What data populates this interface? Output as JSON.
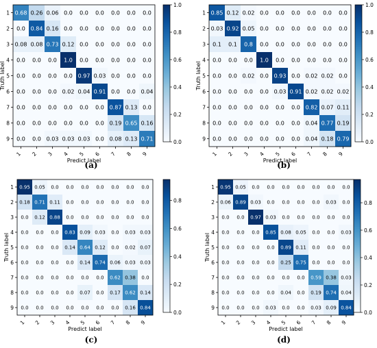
{
  "chart_data": [
    {
      "type": "heatmap",
      "caption": "(a)",
      "xlabel": "Predict label",
      "ylabel": "Truth label",
      "labels": [
        "1",
        "2",
        "3",
        "4",
        "5",
        "6",
        "7",
        "8",
        "9"
      ],
      "colorbar_ticks": [
        "0.0",
        "0.2",
        "0.4",
        "0.6",
        "0.8",
        "1.0"
      ],
      "colorbar_range": [
        0,
        1.0
      ],
      "cells": [
        [
          "0.68",
          "0.26",
          "0.06",
          "0.0",
          "0.0",
          "0.0",
          "0.0",
          "0.0",
          "0.0"
        ],
        [
          "0.0",
          "0.84",
          "0.16",
          "0.0",
          "0.0",
          "0.0",
          "0.0",
          "0.0",
          "0.0"
        ],
        [
          "0.08",
          "0.08",
          "0.73",
          "0.12",
          "0.0",
          "0.0",
          "0.0",
          "0.0",
          "0.0"
        ],
        [
          "0.0",
          "0.0",
          "0.0",
          "1.0",
          "0.0",
          "0.0",
          "0.0",
          "0.0",
          "0.0"
        ],
        [
          "0.0",
          "0.0",
          "0.0",
          "0.0",
          "0.97",
          "0.03",
          "0.0",
          "0.0",
          "0.0"
        ],
        [
          "0.0",
          "0.0",
          "0.0",
          "0.02",
          "0.04",
          "0.91",
          "0.0",
          "0.0",
          "0.04"
        ],
        [
          "0.0",
          "0.0",
          "0.0",
          "0.0",
          "0.0",
          "0.0",
          "0.87",
          "0.13",
          "0.0"
        ],
        [
          "0.0",
          "0.0",
          "0.0",
          "0.0",
          "0.0",
          "0.0",
          "0.19",
          "0.65",
          "0.16"
        ],
        [
          "0.0",
          "0.0",
          "0.03",
          "0.03",
          "0.03",
          "0.0",
          "0.08",
          "0.13",
          "0.71"
        ]
      ]
    },
    {
      "type": "heatmap",
      "caption": "(b)",
      "xlabel": "Predict label",
      "ylabel": "Truth label",
      "labels": [
        "1",
        "2",
        "3",
        "4",
        "5",
        "6",
        "7",
        "8",
        "9"
      ],
      "colorbar_ticks": [
        "0.0",
        "0.2",
        "0.4",
        "0.6",
        "0.8",
        "1.0"
      ],
      "colorbar_range": [
        0,
        1.0
      ],
      "cells": [
        [
          "0.85",
          "0.12",
          "0.02",
          "0.0",
          "0.0",
          "0.0",
          "0.0",
          "0.0",
          "0.0"
        ],
        [
          "0.03",
          "0.92",
          "0.05",
          "0.0",
          "0.0",
          "0.0",
          "0.0",
          "0.0",
          "0.0"
        ],
        [
          "0.1",
          "0.1",
          "0.8",
          "0.0",
          "0.0",
          "0.0",
          "0.0",
          "0.0",
          "0.0"
        ],
        [
          "0.0",
          "0.0",
          "0.0",
          "1.0",
          "0.0",
          "0.0",
          "0.0",
          "0.0",
          "0.0"
        ],
        [
          "0.0",
          "0.0",
          "0.02",
          "0.0",
          "0.93",
          "0.0",
          "0.02",
          "0.02",
          "0.0"
        ],
        [
          "0.0",
          "0.0",
          "0.0",
          "0.0",
          "0.03",
          "0.91",
          "0.02",
          "0.02",
          "0.02"
        ],
        [
          "0.0",
          "0.0",
          "0.0",
          "0.0",
          "0.0",
          "0.0",
          "0.82",
          "0.07",
          "0.11"
        ],
        [
          "0.0",
          "0.0",
          "0.0",
          "0.0",
          "0.0",
          "0.0",
          "0.04",
          "0.77",
          "0.19"
        ],
        [
          "0.0",
          "0.0",
          "0.0",
          "0.0",
          "0.0",
          "0.0",
          "0.04",
          "0.18",
          "0.79"
        ]
      ]
    },
    {
      "type": "heatmap",
      "caption": "(c)",
      "xlabel": "Predict label",
      "ylabel": "Truth label",
      "labels": [
        "1",
        "2",
        "3",
        "4",
        "5",
        "6",
        "7",
        "8",
        "9"
      ],
      "colorbar_ticks": [
        "0.0",
        "0.2",
        "0.4",
        "0.6",
        "0.8"
      ],
      "colorbar_range": [
        0,
        0.95
      ],
      "cells": [
        [
          "0.95",
          "0.05",
          "0.0",
          "0.0",
          "0.0",
          "0.0",
          "0.0",
          "0.0",
          "0.0"
        ],
        [
          "0.18",
          "0.71",
          "0.11",
          "0.0",
          "0.0",
          "0.0",
          "0.0",
          "0.0",
          "0.0"
        ],
        [
          "0.0",
          "0.12",
          "0.88",
          "0.0",
          "0.0",
          "0.0",
          "0.0",
          "0.0",
          "0.0"
        ],
        [
          "0.0",
          "0.0",
          "0.0",
          "0.83",
          "0.09",
          "0.03",
          "0.0",
          "0.03",
          "0.03"
        ],
        [
          "0.0",
          "0.0",
          "0.0",
          "0.14",
          "0.64",
          "0.12",
          "0.0",
          "0.02",
          "0.07"
        ],
        [
          "0.0",
          "0.0",
          "0.0",
          "0.0",
          "0.14",
          "0.74",
          "0.06",
          "0.03",
          "0.03"
        ],
        [
          "0.0",
          "0.0",
          "0.0",
          "0.0",
          "0.0",
          "0.0",
          "0.62",
          "0.38",
          "0.0"
        ],
        [
          "0.0",
          "0.0",
          "0.0",
          "0.0",
          "0.07",
          "0.0",
          "0.17",
          "0.62",
          "0.14"
        ],
        [
          "0.0",
          "0.0",
          "0.0",
          "0.0",
          "0.0",
          "0.0",
          "0.0",
          "0.16",
          "0.84"
        ]
      ]
    },
    {
      "type": "heatmap",
      "caption": "(d)",
      "xlabel": "Predict label",
      "ylabel": "Truth label",
      "labels": [
        "1",
        "2",
        "3",
        "4",
        "5",
        "6",
        "7",
        "8",
        "9"
      ],
      "colorbar_ticks": [
        "0.0",
        "0.2",
        "0.4",
        "0.6",
        "0.8"
      ],
      "colorbar_range": [
        0,
        0.97
      ],
      "cells": [
        [
          "0.95",
          "0.05",
          "0.0",
          "0.0",
          "0.0",
          "0.0",
          "0.0",
          "0.0",
          "0.0"
        ],
        [
          "0.06",
          "0.89",
          "0.03",
          "0.0",
          "0.0",
          "0.0",
          "0.0",
          "0.03",
          "0.0"
        ],
        [
          "0.0",
          "0.0",
          "0.97",
          "0.03",
          "0.0",
          "0.0",
          "0.0",
          "0.0",
          "0.0"
        ],
        [
          "0.0",
          "0.0",
          "0.0",
          "0.85",
          "0.08",
          "0.05",
          "0.0",
          "0.0",
          "0.03"
        ],
        [
          "0.0",
          "0.0",
          "0.0",
          "0.0",
          "0.89",
          "0.11",
          "0.0",
          "0.0",
          "0.0"
        ],
        [
          "0.0",
          "0.0",
          "0.0",
          "0.0",
          "0.25",
          "0.75",
          "0.0",
          "0.0",
          "0.0"
        ],
        [
          "0.0",
          "0.0",
          "0.0",
          "0.0",
          "0.0",
          "0.0",
          "0.59",
          "0.38",
          "0.03"
        ],
        [
          "0.0",
          "0.0",
          "0.0",
          "0.0",
          "0.04",
          "0.0",
          "0.19",
          "0.74",
          "0.04"
        ],
        [
          "0.0",
          "0.0",
          "0.0",
          "0.03",
          "0.0",
          "0.0",
          "0.03",
          "0.09",
          "0.84"
        ]
      ]
    }
  ]
}
